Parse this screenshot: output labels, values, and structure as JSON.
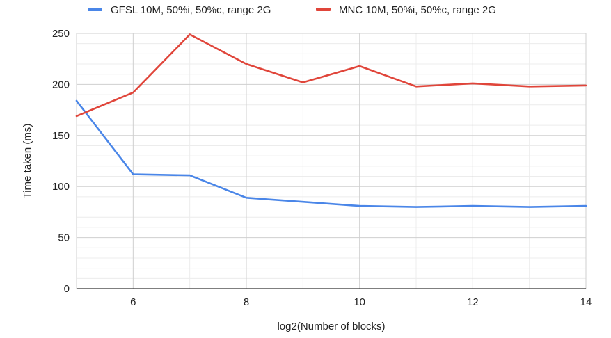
{
  "chart_data": {
    "type": "line",
    "title": "",
    "xlabel": "log2(Number of blocks)",
    "ylabel": "Time taken (ms)",
    "xlim": [
      5,
      14
    ],
    "ylim": [
      0,
      250
    ],
    "x_ticks": [
      6,
      8,
      10,
      12,
      14
    ],
    "y_ticks": [
      0,
      50,
      100,
      150,
      200,
      250
    ],
    "x_minor_ticks": [
      5,
      6,
      7,
      8,
      9,
      10,
      11,
      12,
      13,
      14
    ],
    "y_minor_step": 10,
    "grid": true,
    "legend_position": "top",
    "x": [
      5,
      6,
      7,
      8,
      9,
      10,
      11,
      12,
      13,
      14
    ],
    "series": [
      {
        "name": "GFSL 10M, 50%i, 50%c, range 2G",
        "color": "#4a86e8",
        "values": [
          184,
          112,
          111,
          89,
          85,
          81,
          80,
          81,
          80,
          81
        ]
      },
      {
        "name": "MNC 10M, 50%i, 50%c, range 2G",
        "color": "#e0453a",
        "values": [
          169,
          192,
          249,
          220,
          202,
          218,
          198,
          201,
          198,
          199
        ]
      }
    ]
  }
}
